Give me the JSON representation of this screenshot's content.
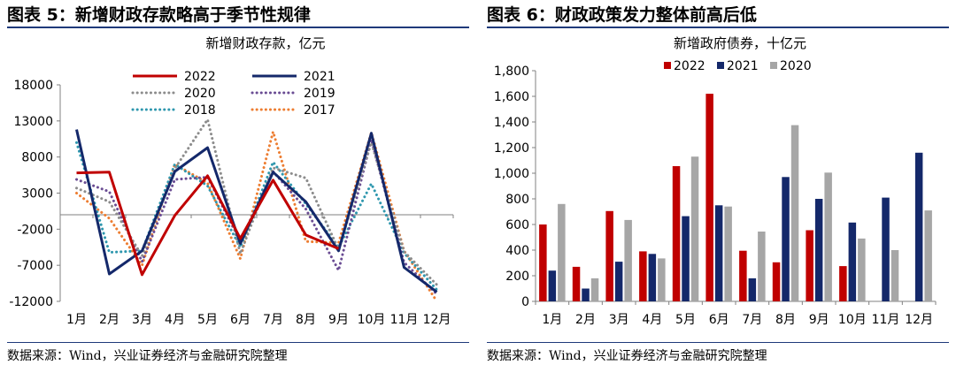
{
  "left": {
    "figure_title": "图表 5：新增财政存款略高于季节性规律",
    "source": "数据来源：Wind，兴业证券经济与金融研究院整理"
  },
  "right": {
    "figure_title": "图表 6：财政政策发力整体前高后低",
    "source": "数据来源：Wind，兴业证券经济与金融研究院整理"
  },
  "colors": {
    "rule": "#1f3a7a",
    "axis": "#808080"
  },
  "chart_data": [
    {
      "type": "line",
      "title": "新增财政存款，亿元",
      "categories": [
        "1月",
        "2月",
        "3月",
        "4月",
        "5月",
        "6月",
        "7月",
        "8月",
        "9月",
        "10月",
        "11月",
        "12月"
      ],
      "ylim": [
        -12000,
        18000
      ],
      "yticks": [
        18000,
        13000,
        8000,
        3000,
        -2000,
        -7000,
        -12000
      ],
      "legend_position": "top",
      "series": [
        {
          "name": "2022",
          "color": "#c00000",
          "style": "solid",
          "width": 3,
          "values": [
            5800,
            5900,
            -8300,
            -100,
            5400,
            -3300,
            4800,
            -2800,
            -4700,
            null,
            null,
            null
          ]
        },
        {
          "name": "2021",
          "color": "#14286a",
          "style": "solid",
          "width": 3,
          "values": [
            11800,
            -8200,
            -5000,
            6000,
            9300,
            -4000,
            5900,
            1800,
            -5000,
            11300,
            -7300,
            -10700
          ]
        },
        {
          "name": "2020",
          "color": "#8c8c8c",
          "style": "dotted",
          "width": 3,
          "values": [
            3700,
            1800,
            -5700,
            6400,
            13200,
            -5400,
            6500,
            5100,
            -4800,
            10000,
            -5100,
            -9700
          ]
        },
        {
          "name": "2019",
          "color": "#6a4c93",
          "style": "dotted",
          "width": 3,
          "values": [
            4900,
            3200,
            -6500,
            4900,
            5200,
            -3700,
            6000,
            800,
            -7700,
            10400,
            -6600,
            -11000
          ]
        },
        {
          "name": "2018",
          "color": "#2e97ae",
          "style": "dotted",
          "width": 3,
          "values": [
            10000,
            -5200,
            -5000,
            7000,
            4000,
            -4500,
            7300,
            1500,
            -4500,
            4300,
            -5300,
            -10400
          ]
        },
        {
          "name": "2017",
          "color": "#ed7d31",
          "style": "dotted",
          "width": 3,
          "values": [
            3000,
            -500,
            -7000,
            7000,
            4400,
            -6100,
            11500,
            -3700,
            -3900,
            11400,
            -5000,
            -12000
          ]
        }
      ]
    },
    {
      "type": "bar",
      "title": "新增政府债券，十亿元",
      "categories": [
        "1月",
        "2月",
        "3月",
        "4月",
        "5月",
        "6月",
        "7月",
        "8月",
        "9月",
        "10月",
        "11月",
        "12月"
      ],
      "ylim": [
        0,
        1800
      ],
      "yticks": [
        "1,800",
        "1,600",
        "1,400",
        "1,200",
        "1,000",
        "800",
        "600",
        "400",
        "200",
        "0"
      ],
      "legend_position": "top",
      "series": [
        {
          "name": "2022",
          "color": "#c00000",
          "values": [
            600,
            270,
            705,
            390,
            1055,
            1620,
            395,
            305,
            555,
            275,
            null,
            null
          ]
        },
        {
          "name": "2021",
          "color": "#14286a",
          "values": [
            240,
            100,
            310,
            370,
            665,
            750,
            180,
            970,
            800,
            615,
            810,
            1160
          ]
        },
        {
          "name": "2020",
          "color": "#a6a6a6",
          "values": [
            760,
            180,
            635,
            335,
            1130,
            740,
            545,
            1375,
            1005,
            490,
            400,
            710
          ]
        }
      ]
    }
  ]
}
